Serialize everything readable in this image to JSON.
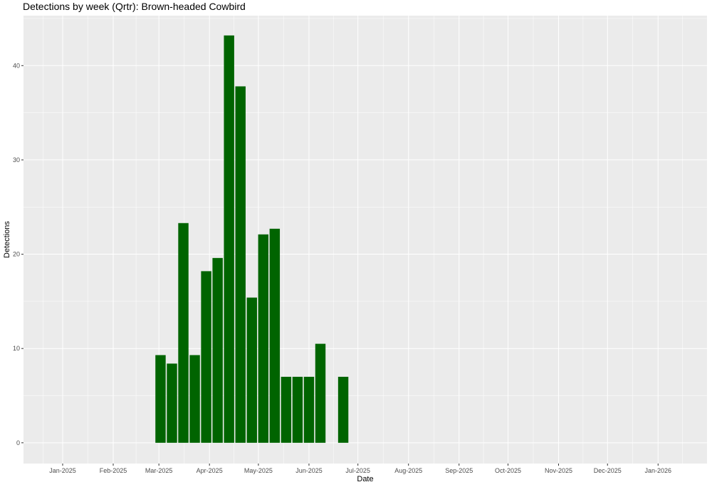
{
  "chart_data": {
    "type": "bar",
    "title": "Detections by week (Qrtr): Brown-headed Cowbird",
    "xlabel": "Date",
    "ylabel": "Detections",
    "x_axis": {
      "type": "date",
      "range": [
        "2024-12-08",
        "2026-01-31"
      ],
      "tick_labels": [
        {
          "date": "2025-01-01",
          "label": "Jan-2025"
        },
        {
          "date": "2025-02-01",
          "label": "Feb-2025"
        },
        {
          "date": "2025-03-01",
          "label": "Mar-2025"
        },
        {
          "date": "2025-04-01",
          "label": "Apr-2025"
        },
        {
          "date": "2025-05-01",
          "label": "May-2025"
        },
        {
          "date": "2025-06-01",
          "label": "Jun-2025"
        },
        {
          "date": "2025-07-01",
          "label": "Jul-2025"
        },
        {
          "date": "2025-08-01",
          "label": "Aug-2025"
        },
        {
          "date": "2025-09-01",
          "label": "Sep-2025"
        },
        {
          "date": "2025-10-01",
          "label": "Oct-2025"
        },
        {
          "date": "2025-11-01",
          "label": "Nov-2025"
        },
        {
          "date": "2025-12-01",
          "label": "Dec-2025"
        },
        {
          "date": "2026-01-01",
          "label": "Jan-2026"
        }
      ]
    },
    "y_axis": {
      "range": [
        -2.2,
        45.3
      ],
      "ticks": [
        0,
        10,
        20,
        30,
        40
      ]
    },
    "series": [
      {
        "color": "#006400",
        "points": [
          {
            "x": "2025-03-02",
            "y": 9.3
          },
          {
            "x": "2025-03-09",
            "y": 8.4
          },
          {
            "x": "2025-03-16",
            "y": 23.3
          },
          {
            "x": "2025-03-23",
            "y": 9.3
          },
          {
            "x": "2025-03-30",
            "y": 18.2
          },
          {
            "x": "2025-04-06",
            "y": 19.6
          },
          {
            "x": "2025-04-13",
            "y": 43.2
          },
          {
            "x": "2025-04-20",
            "y": 37.8
          },
          {
            "x": "2025-04-27",
            "y": 15.4
          },
          {
            "x": "2025-05-04",
            "y": 22.1
          },
          {
            "x": "2025-05-11",
            "y": 22.7
          },
          {
            "x": "2025-05-18",
            "y": 7.0
          },
          {
            "x": "2025-05-25",
            "y": 7.0
          },
          {
            "x": "2025-06-01",
            "y": 7.0
          },
          {
            "x": "2025-06-08",
            "y": 10.5
          },
          {
            "x": "2025-06-22",
            "y": 7.0
          }
        ]
      }
    ],
    "bar_width_days": 6.3,
    "grid": true,
    "panel_background": "#ebebeb",
    "grid_color": "#ffffff"
  }
}
